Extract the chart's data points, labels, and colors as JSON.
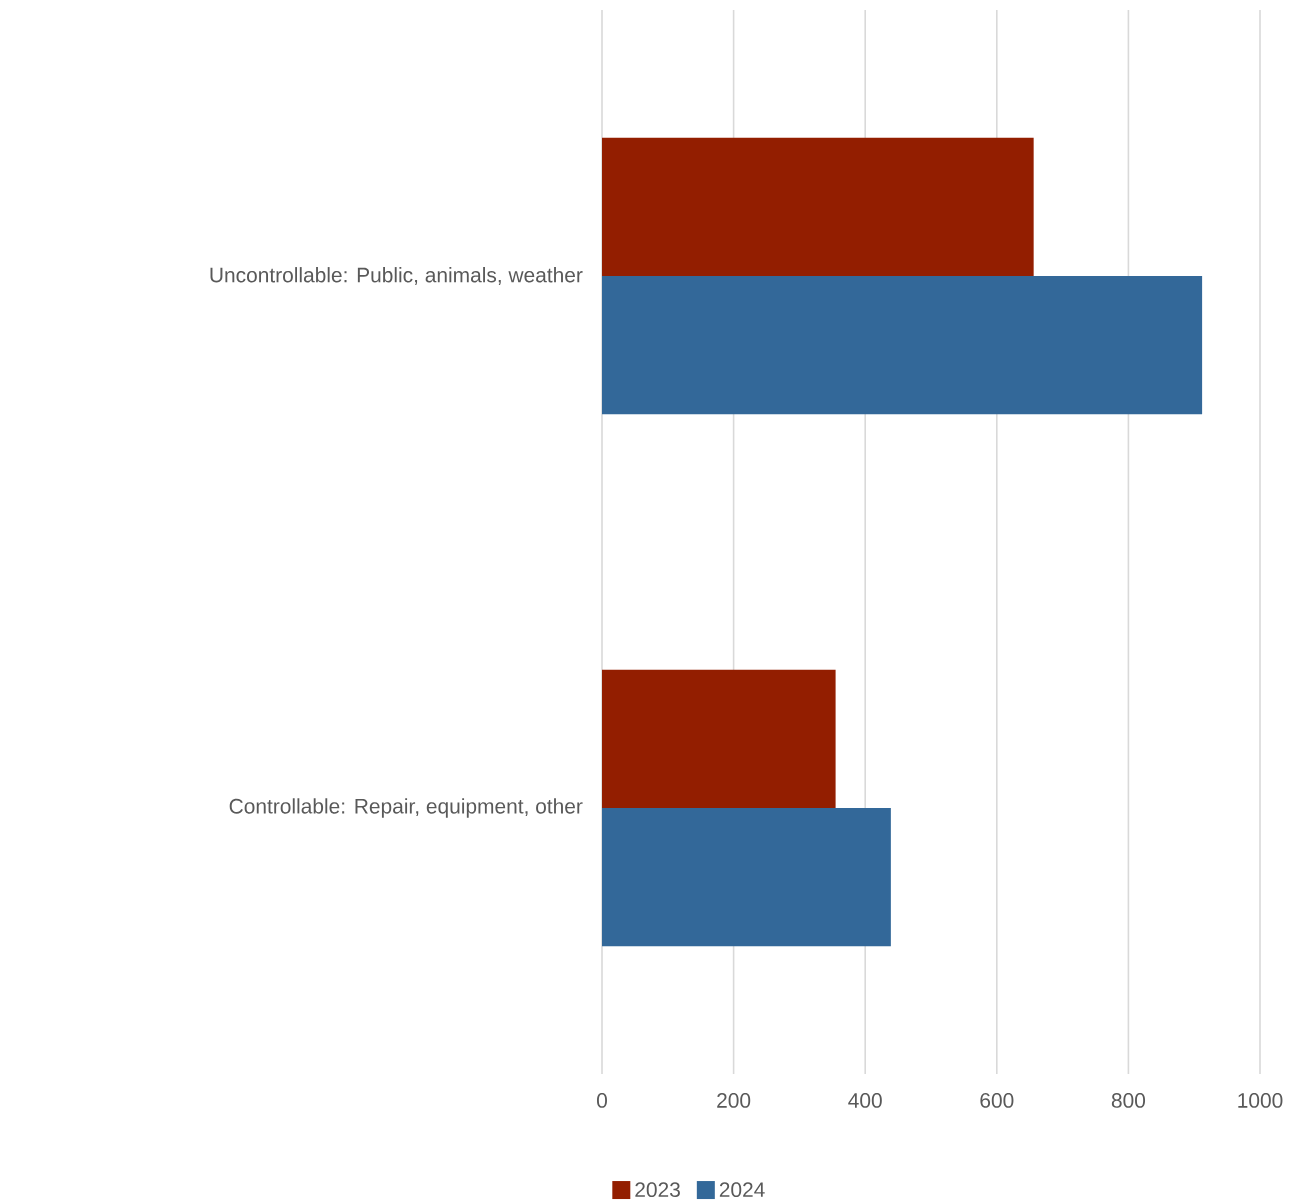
{
  "chart_data": {
    "type": "bar",
    "orientation": "horizontal",
    "categories": [
      "Uncontrollable: Public, animals, weather",
      "Controllable: Repair, equipment, other"
    ],
    "series": [
      {
        "name": "2023",
        "color": "#931e00",
        "values": [
          656,
          355
        ]
      },
      {
        "name": "2024",
        "color": "#336899",
        "values": [
          912,
          439
        ]
      }
    ],
    "xlim": [
      0,
      1000
    ],
    "xticks": [
      0,
      200,
      400,
      600,
      800,
      1000
    ],
    "grid": "x",
    "legend": "bottom"
  }
}
